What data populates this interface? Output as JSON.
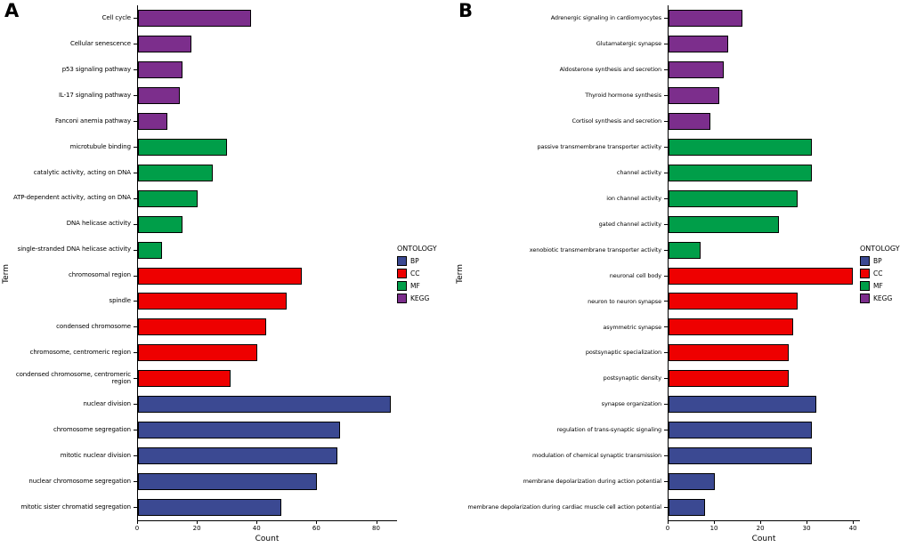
{
  "figure": {
    "legend_title": "ONTOLOGY",
    "legend_items": [
      {
        "label": "BP",
        "color": "#3B4992"
      },
      {
        "label": "CC",
        "color": "#EE0000"
      },
      {
        "label": "MF",
        "color": "#009E49"
      },
      {
        "label": "KEGG",
        "color": "#7C2E8C"
      }
    ]
  },
  "chart_data": [
    {
      "type": "bar",
      "panel_label": "A",
      "orientation": "horizontal",
      "xlabel": "Count",
      "ylabel": "Term",
      "xlim": [
        0,
        87
      ],
      "xticks": [
        0,
        20,
        40,
        60,
        80
      ],
      "grid": false,
      "legend_position": "right",
      "bars": [
        {
          "term": "Cell cycle",
          "count": 38,
          "ontology": "KEGG"
        },
        {
          "term": "Cellular senescence",
          "count": 18,
          "ontology": "KEGG"
        },
        {
          "term": "p53 signaling pathway",
          "count": 15,
          "ontology": "KEGG"
        },
        {
          "term": "IL-17 signaling pathway",
          "count": 14,
          "ontology": "KEGG"
        },
        {
          "term": "Fanconi anemia pathway",
          "count": 10,
          "ontology": "KEGG"
        },
        {
          "term": "microtubule binding",
          "count": 30,
          "ontology": "MF"
        },
        {
          "term": "catalytic activity, acting on DNA",
          "count": 25,
          "ontology": "MF"
        },
        {
          "term": "ATP-dependent activity, acting on DNA",
          "count": 20,
          "ontology": "MF"
        },
        {
          "term": "DNA helicase activity",
          "count": 15,
          "ontology": "MF"
        },
        {
          "term": "single-stranded DNA helicase activity",
          "count": 8,
          "ontology": "MF"
        },
        {
          "term": "chromosomal region",
          "count": 55,
          "ontology": "CC"
        },
        {
          "term": "spindle",
          "count": 50,
          "ontology": "CC"
        },
        {
          "term": "condensed chromosome",
          "count": 43,
          "ontology": "CC"
        },
        {
          "term": "chromosome, centromeric region",
          "count": 40,
          "ontology": "CC"
        },
        {
          "term": "condensed chromosome, centromeric region",
          "count": 31,
          "ontology": "CC"
        },
        {
          "term": "nuclear division",
          "count": 85,
          "ontology": "BP"
        },
        {
          "term": "chromosome segregation",
          "count": 68,
          "ontology": "BP"
        },
        {
          "term": "mitotic nuclear division",
          "count": 67,
          "ontology": "BP"
        },
        {
          "term": "nuclear chromosome segregation",
          "count": 60,
          "ontology": "BP"
        },
        {
          "term": "mitotic sister chromatid segregation",
          "count": 48,
          "ontology": "BP"
        }
      ]
    },
    {
      "type": "bar",
      "panel_label": "B",
      "orientation": "horizontal",
      "xlabel": "Count",
      "ylabel": "Term",
      "xlim": [
        0,
        41.5
      ],
      "xticks": [
        0,
        10,
        20,
        30,
        40
      ],
      "grid": false,
      "legend_position": "right",
      "bars": [
        {
          "term": "Adrenergic signaling in cardiomyocytes",
          "count": 16,
          "ontology": "KEGG"
        },
        {
          "term": "Glutamatergic synapse",
          "count": 13,
          "ontology": "KEGG"
        },
        {
          "term": "Aldosterone synthesis and secretion",
          "count": 12,
          "ontology": "KEGG"
        },
        {
          "term": "Thyroid hormone synthesis",
          "count": 11,
          "ontology": "KEGG"
        },
        {
          "term": "Cortisol synthesis and secretion",
          "count": 9,
          "ontology": "KEGG"
        },
        {
          "term": "passive transmembrane transporter activity",
          "count": 31,
          "ontology": "MF"
        },
        {
          "term": "channel activity",
          "count": 31,
          "ontology": "MF"
        },
        {
          "term": "ion channel activity",
          "count": 28,
          "ontology": "MF"
        },
        {
          "term": "gated channel activity",
          "count": 24,
          "ontology": "MF"
        },
        {
          "term": "xenobiotic transmembrane transporter activity",
          "count": 7,
          "ontology": "MF"
        },
        {
          "term": "neuronal cell body",
          "count": 40,
          "ontology": "CC"
        },
        {
          "term": "neuron to neuron synapse",
          "count": 28,
          "ontology": "CC"
        },
        {
          "term": "asymmetric synapse",
          "count": 27,
          "ontology": "CC"
        },
        {
          "term": "postsynaptic specialization",
          "count": 26,
          "ontology": "CC"
        },
        {
          "term": "postsynaptic density",
          "count": 26,
          "ontology": "CC"
        },
        {
          "term": "synapse organization",
          "count": 32,
          "ontology": "BP"
        },
        {
          "term": "regulation of trans-synaptic signaling",
          "count": 31,
          "ontology": "BP"
        },
        {
          "term": "modulation of chemical synaptic transmission",
          "count": 31,
          "ontology": "BP"
        },
        {
          "term": "membrane depolarization during action potential",
          "count": 10,
          "ontology": "BP"
        },
        {
          "term": "membrane depolarization during cardiac muscle cell action potential",
          "count": 8,
          "ontology": "BP"
        }
      ]
    }
  ]
}
